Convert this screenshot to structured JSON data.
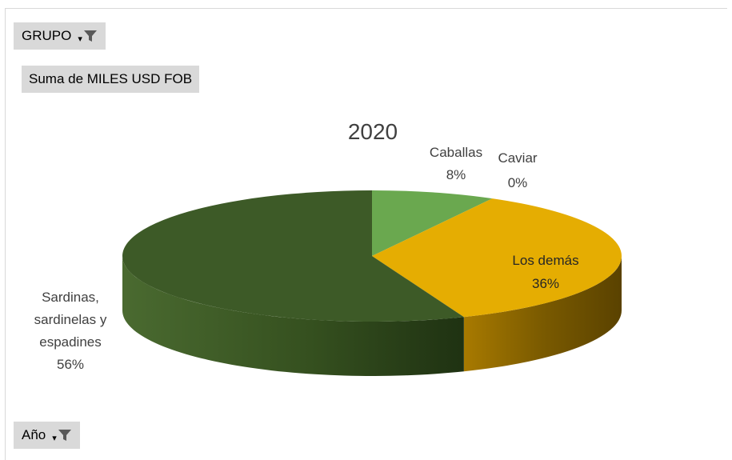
{
  "filters": {
    "group": {
      "label": "GRUPO"
    },
    "year": {
      "label": "Año"
    }
  },
  "value_field": {
    "label": "Suma de MILES USD FOB"
  },
  "chart_data": {
    "type": "pie",
    "style": "3d",
    "title": "2020",
    "slices": [
      {
        "label": "Caballas",
        "value": 8,
        "display": "8%",
        "color": "#6aa84f"
      },
      {
        "label": "Caviar",
        "value": 0,
        "display": "0%",
        "color": "#c9a227"
      },
      {
        "label": "Los demás",
        "value": 36,
        "display": "36%",
        "color": "#e5ad02"
      },
      {
        "label_lines": [
          "Sardinas,",
          "sardinelas y",
          "espadines"
        ],
        "value": 56,
        "display": "56%",
        "color": "#3d5a27"
      }
    ]
  }
}
